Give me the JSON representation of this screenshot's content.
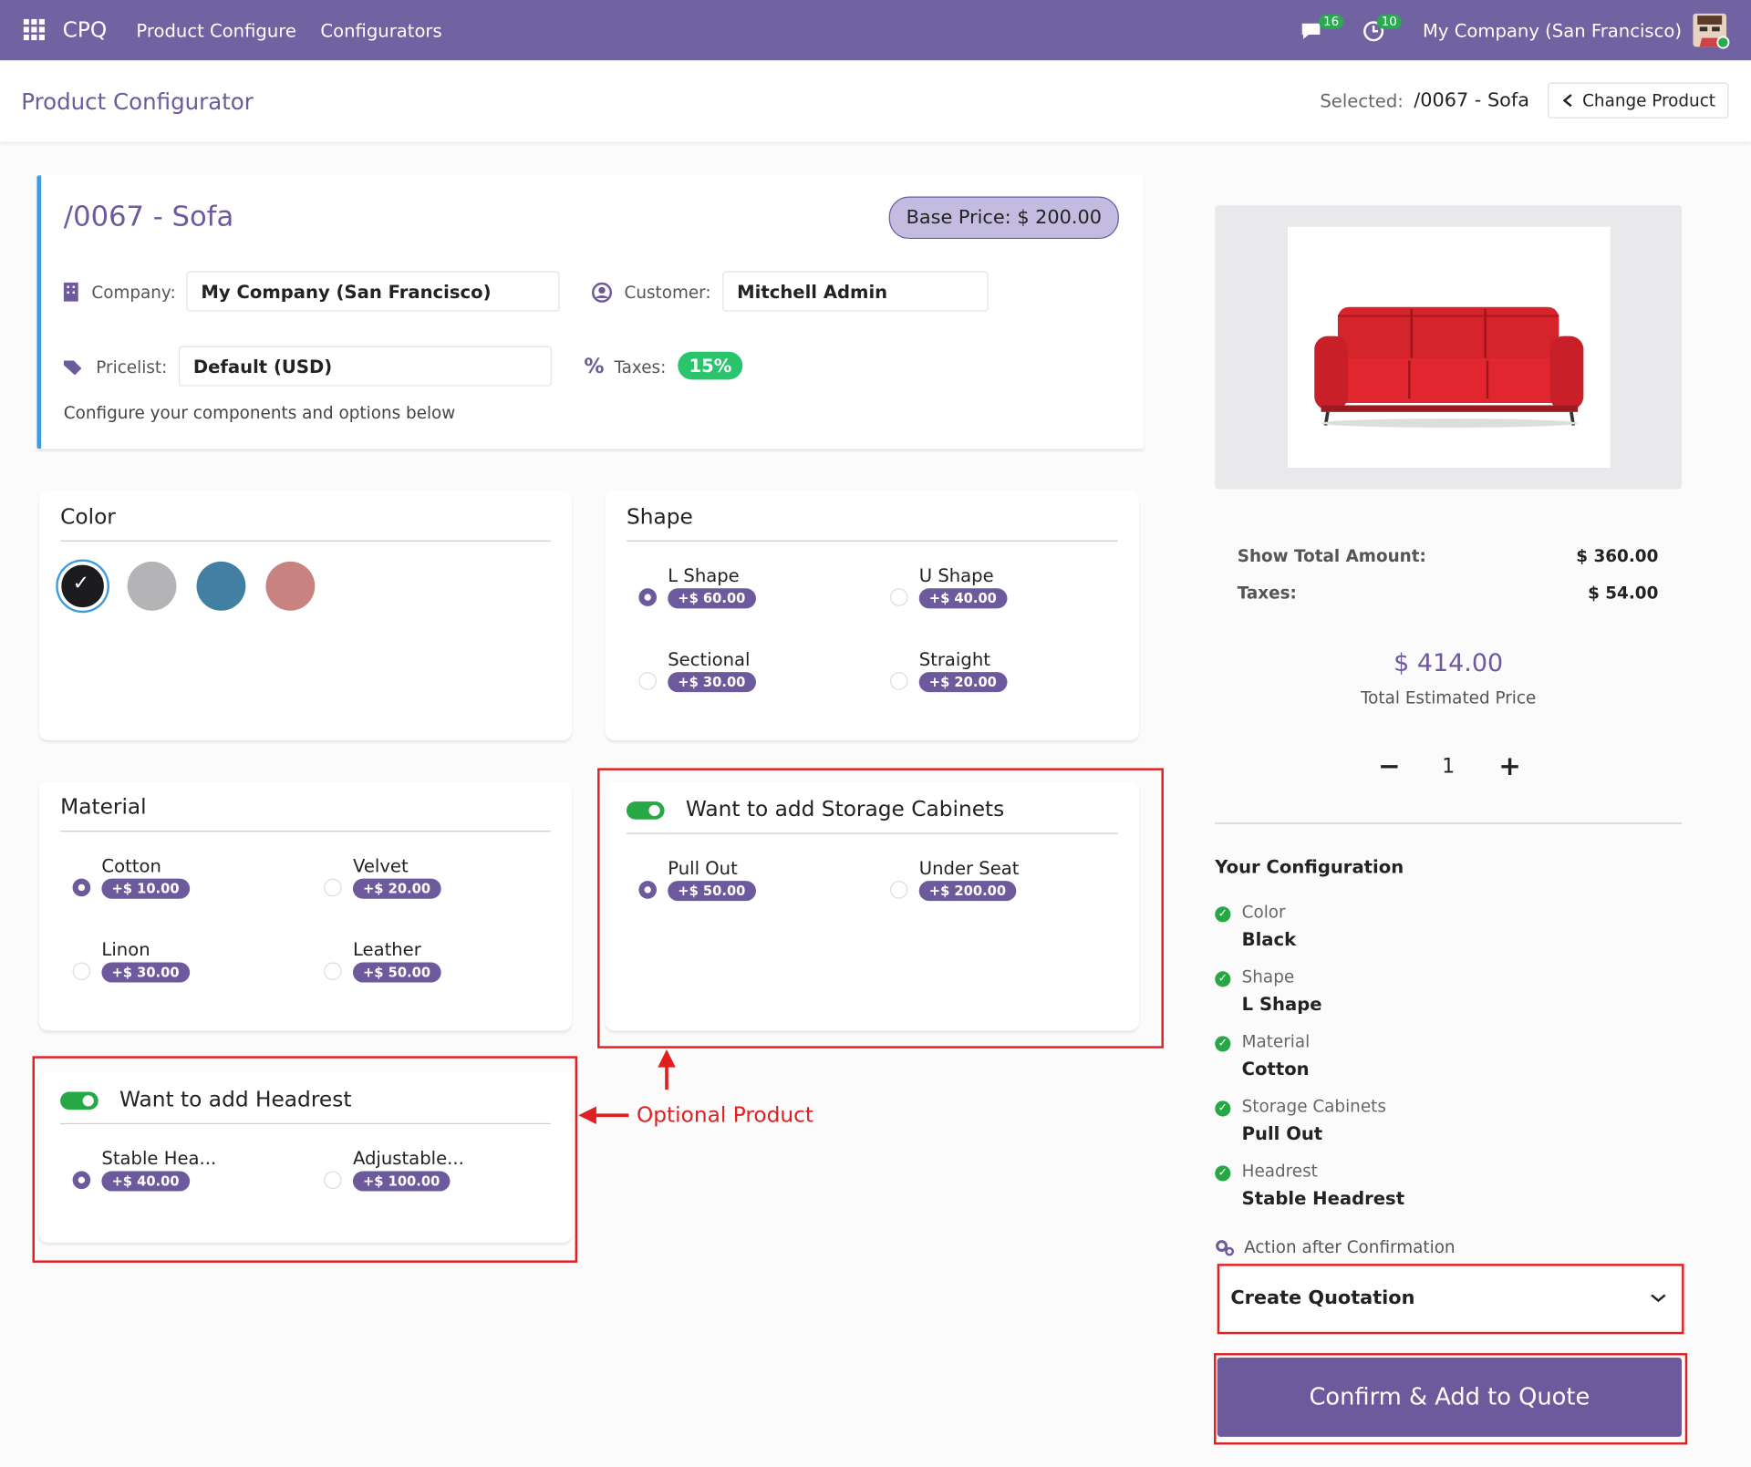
{
  "navbar": {
    "app": "CPQ",
    "menu": [
      "Product Configure",
      "Configurators"
    ],
    "messages_count": 16,
    "activities_count": 10,
    "company": "My Company (San Francisco)"
  },
  "header": {
    "title": "Product Configurator",
    "selected_label": "Selected:",
    "selected_value": "/0067 - Sofa",
    "change_button": "Change Product"
  },
  "product": {
    "name": "/0067 - Sofa",
    "base_price": "Base Price: $ 200.00",
    "company_label": "Company:",
    "company": "My Company (San Francisco)",
    "customer_label": "Customer:",
    "customer": "Mitchell Admin",
    "pricelist_label": "Pricelist:",
    "pricelist": "Default (USD)",
    "taxes_label": "Taxes:",
    "taxes": "15%",
    "hint": "Configure your components and options below"
  },
  "sections": [
    {
      "title": "Color",
      "colors": [
        "#1c1c1e",
        "#b4b4b6",
        "#437ea3",
        "#c88380"
      ],
      "selected": 0
    },
    {
      "title": "Shape",
      "selected": 0,
      "options": [
        {
          "name": "L Shape",
          "price": "+$ 60.00"
        },
        {
          "name": "U Shape",
          "price": "+$ 40.00"
        },
        {
          "name": "Sectional",
          "price": "+$ 30.00"
        },
        {
          "name": "Straight",
          "price": "+$ 20.00"
        }
      ]
    },
    {
      "title": "Material",
      "selected": 0,
      "options": [
        {
          "name": "Cotton",
          "price": "+$ 10.00"
        },
        {
          "name": "Velvet",
          "price": "+$ 20.00"
        },
        {
          "name": "Linon",
          "price": "+$ 30.00"
        },
        {
          "name": "Leather",
          "price": "+$ 50.00"
        }
      ]
    },
    {
      "title": "Want to add Storage Cabinets",
      "toggle": true,
      "selected": 0,
      "options": [
        {
          "name": "Pull Out",
          "price": "+$ 50.00"
        },
        {
          "name": "Under Seat",
          "price": "+$ 200.00"
        }
      ]
    },
    {
      "title": "Want to add Headrest",
      "toggle": true,
      "selected": 0,
      "options": [
        {
          "name": "Stable Hea...",
          "price": "+$ 40.00"
        },
        {
          "name": "Adjustable...",
          "price": "+$ 100.00"
        }
      ]
    }
  ],
  "annotation": "Optional Product",
  "summary": {
    "total_label": "Show Total Amount:",
    "total": "$ 360.00",
    "taxes_label": "Taxes:",
    "taxes": "$ 54.00",
    "estimated": "$ 414.00",
    "estimated_label": "Total Estimated Price",
    "quantity": 1,
    "config_title": "Your Configuration",
    "items": [
      {
        "label": "Color",
        "value": "Black"
      },
      {
        "label": "Shape",
        "value": "L Shape"
      },
      {
        "label": "Material",
        "value": "Cotton"
      },
      {
        "label": "Storage Cabinets",
        "value": "Pull Out"
      },
      {
        "label": "Headrest",
        "value": "Stable Headrest"
      }
    ],
    "action_label": "Action after Confirmation",
    "action": "Create Quotation",
    "confirm": "Confirm & Add to Quote"
  }
}
